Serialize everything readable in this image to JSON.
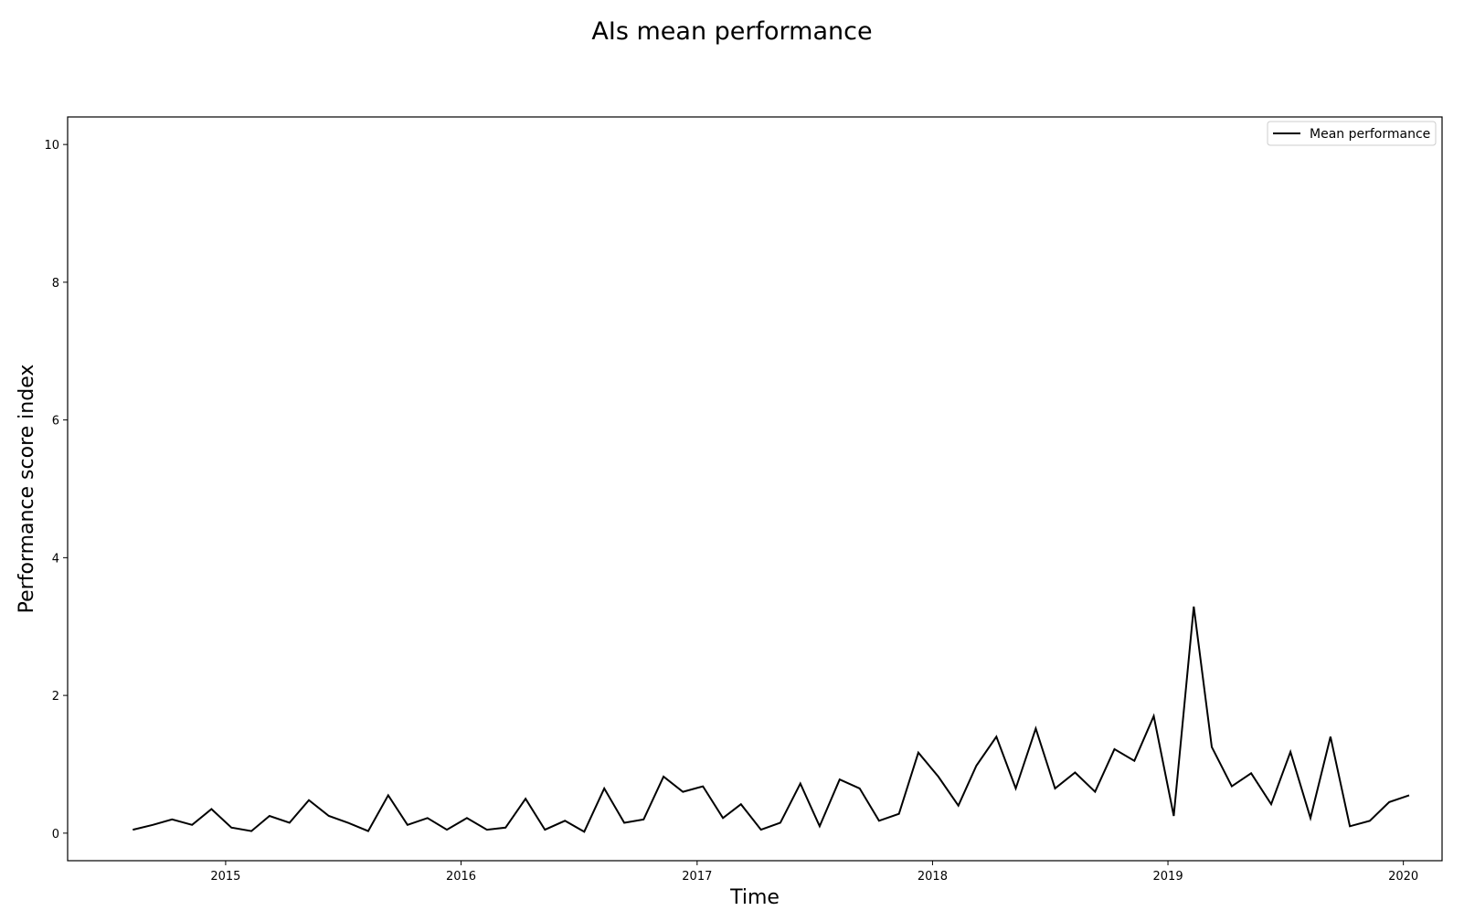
{
  "chart_data": {
    "type": "line",
    "title": "AIs mean performance",
    "xlabel": "Time",
    "ylabel": "Performance score index",
    "legend": {
      "placement": "top-right",
      "entries": [
        "Mean performance"
      ]
    },
    "grid": false,
    "xlim": [
      "2014-05-01",
      "2020-03-01"
    ],
    "ylim": [
      -0.4,
      10.4
    ],
    "x_ticks": [
      {
        "date": "2015-01-01",
        "label": "2015"
      },
      {
        "date": "2016-01-01",
        "label": "2016"
      },
      {
        "date": "2017-01-01",
        "label": "2017"
      },
      {
        "date": "2018-01-01",
        "label": "2018"
      },
      {
        "date": "2019-01-01",
        "label": "2019"
      },
      {
        "date": "2020-01-01",
        "label": "2020"
      }
    ],
    "y_ticks": [
      0,
      2,
      4,
      6,
      8,
      10
    ],
    "series": [
      {
        "name": "Mean performance",
        "color": "#000000",
        "x": [
          "2014-08-10",
          "2014-09-10",
          "2014-10-10",
          "2014-11-10",
          "2014-12-10",
          "2015-01-10",
          "2015-02-10",
          "2015-03-10",
          "2015-04-10",
          "2015-05-10",
          "2015-06-10",
          "2015-07-10",
          "2015-08-10",
          "2015-09-10",
          "2015-10-10",
          "2015-11-10",
          "2015-12-10",
          "2016-01-10",
          "2016-02-10",
          "2016-03-10",
          "2016-04-10",
          "2016-05-10",
          "2016-06-10",
          "2016-07-10",
          "2016-08-10",
          "2016-09-10",
          "2016-10-10",
          "2016-11-10",
          "2016-12-10",
          "2017-01-10",
          "2017-02-10",
          "2017-03-10",
          "2017-04-10",
          "2017-05-10",
          "2017-06-10",
          "2017-07-10",
          "2017-08-10",
          "2017-09-10",
          "2017-10-10",
          "2017-11-10",
          "2017-12-10",
          "2018-01-10",
          "2018-02-10",
          "2018-03-10",
          "2018-04-10",
          "2018-05-10",
          "2018-06-10",
          "2018-07-10",
          "2018-08-10",
          "2018-09-10",
          "2018-10-10",
          "2018-11-10",
          "2018-12-10",
          "2019-01-10",
          "2019-02-10",
          "2019-03-10",
          "2019-04-10",
          "2019-05-10",
          "2019-06-10",
          "2019-07-10",
          "2019-08-10",
          "2019-09-10",
          "2019-10-10",
          "2019-11-10",
          "2019-12-10",
          "2020-01-10"
        ],
        "y": [
          0.05,
          0.12,
          0.2,
          0.12,
          0.35,
          0.08,
          0.03,
          0.25,
          0.15,
          0.48,
          0.25,
          0.15,
          0.03,
          0.55,
          0.12,
          0.22,
          0.05,
          0.22,
          0.05,
          0.08,
          0.5,
          0.05,
          0.18,
          0.02,
          0.65,
          0.15,
          0.2,
          0.82,
          0.6,
          0.68,
          0.22,
          0.42,
          0.05,
          0.15,
          0.72,
          0.1,
          0.78,
          0.65,
          0.18,
          0.28,
          1.17,
          0.82,
          0.4,
          0.98,
          1.4,
          0.65,
          1.52,
          0.65,
          0.88,
          0.6,
          1.22,
          1.05,
          1.7,
          0.25,
          3.29,
          1.25,
          0.68,
          0.87,
          0.42,
          1.18,
          0.22,
          1.4,
          0.1,
          0.18,
          0.45,
          0.55
        ]
      }
    ]
  }
}
